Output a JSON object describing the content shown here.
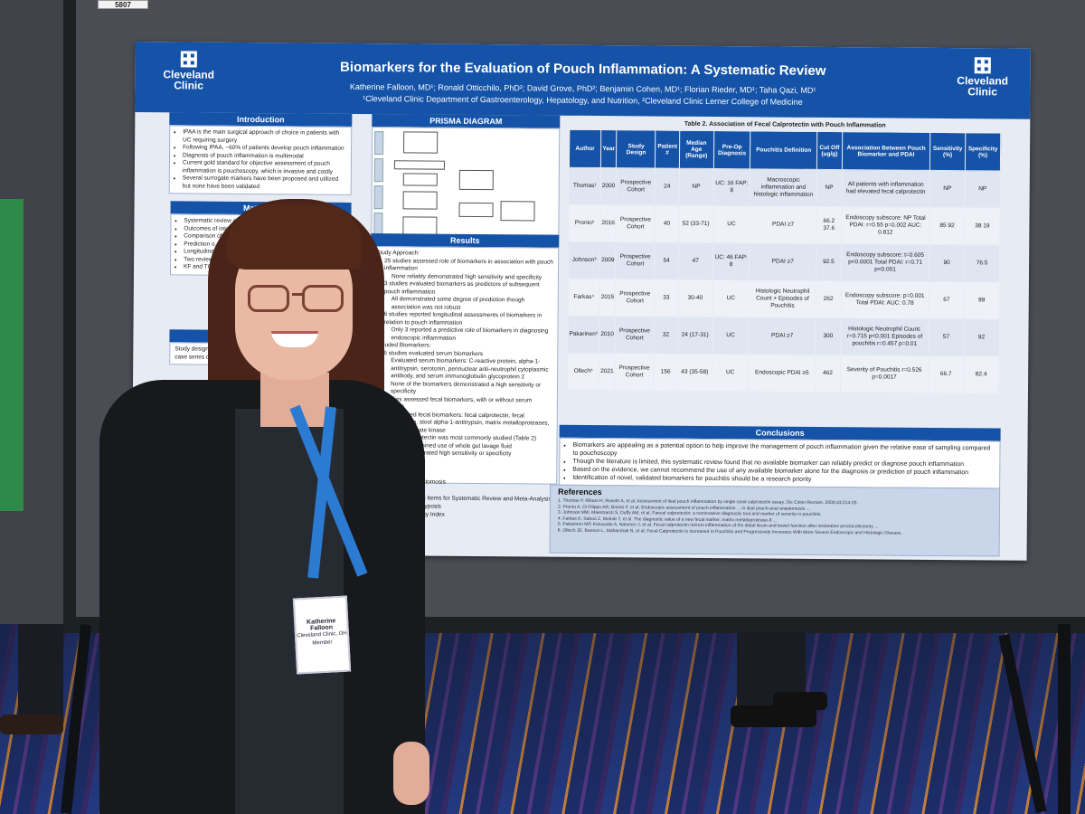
{
  "booth": {
    "number_tag": "5807"
  },
  "poster": {
    "title": "Biomarkers for the Evaluation of Pouch Inflammation: A Systematic Review",
    "authors": "Katherine Falloon, MD¹; Ronald Otticchilo, PhD²; David Grove, PhD²; Benjamin Cohen, MD¹; Florian Rieder, MD¹; Taha Qazi, MD¹",
    "affiliations": "¹Cleveland Clinic Department of Gastroenterology, Hepatology, and Nutrition, ²Cleveland Clinic Lerner College of Medicine",
    "logo_left": [
      "Cleveland",
      "Clinic"
    ],
    "logo_right": [
      "Cleveland",
      "Clinic"
    ],
    "intro": {
      "heading": "Introduction",
      "bullets": [
        "IPAA is the main surgical approach of choice in patients with UC requiring surgery",
        "Following IPAA, ~60% of patients develop pouch inflammation",
        "Diagnosis of pouch inflammation is multimodal",
        "Current gold standard for objective assessment of pouch inflammation is pouchoscopy, which is invasive and costly",
        "Several surrogate markers have been proposed and utilized but none have been validated"
      ]
    },
    "methods": {
      "heading": "Materials",
      "lines": [
        "Systematic review con... guidelines",
        "Outcomes of interest",
        "Comparison of ... assessed via ... or sensitivity ...",
        "Prediction o...",
        "Longitudina...",
        "Two reviewers (K... abstracts and ide... on eligibility crite...",
        "KF and TQ indepe... risk of bias using ..."
      ]
    },
    "inclusion": {
      "heading": "INCLUSION",
      "text": "Study design-rando... randomized observ... studies, case co... case series cou... patients ... Pati..."
    },
    "prisma": {
      "heading": "PRISMA DIAGRAM",
      "stages": [
        "Identification",
        "Screening",
        "Eligibility",
        "Included"
      ]
    },
    "results": {
      "heading": "Results",
      "lines": [
        "Study Approach:",
        "25 studies assessed role of biomarkers in association with pouch inflammation",
        "None reliably demonstrated high sensitivity and specificity",
        "3 studies evaluated biomarkers as predictors of subsequent pouch inflammation",
        "All demonstrated some degree of prediction though association was not robust",
        "6 studies reported longitudinal assessments of biomarkers in relation to pouch inflammation",
        "Only 3 reported a predictive role of biomarkers in diagnosing endoscopic inflammation",
        "Included Biomarkers:",
        "6 studies evaluated serum biomarkers",
        "Evaluated serum biomarkers: C-reactive protein, alpha-1-antitrypsin, serotonin, perinuclear anti-neutrophil cytoplasmic antibody, and serum immunoglobulin glycoprotein 2",
        "None of the biomarkers demonstrated a high sensitivity or specificity",
        "23 studies assessed fecal biomarkers, with or without serum biomarkers",
        "Evaluated fecal biomarkers: fecal calprotectin, fecal lactoferrin, stool alpha-1-antitrypsin, matrix metalloproteases, fecal pyruvate kinase",
        "Fecal calprotectin was most commonly studied (Table 2)",
        "studies examined use of whole gut lavage fluid",
        "one demonstrated high sensitivity or specificity"
      ]
    },
    "abbrev": [
      "...ch anal anastomosis",
      "...itis",
      "...ed Reporting Items for Systematic Review and Meta-Analysis",
      "...omatous Polyposis",
      "...isease Activity Index"
    ],
    "table": {
      "caption": "Table 2. Association of Fecal Calprotectin with Pouch Inflammation",
      "headers": [
        "Author",
        "Year",
        "Study Design",
        "Patient #",
        "Median Age (Range)",
        "Pre-Op Diagnosis",
        "Pouchitis Definition",
        "Cut Off (ug/g)",
        "Association Between Pouch Biomarker and PDAI",
        "Sensitivity (%)",
        "Specificity (%)"
      ],
      "rows": [
        [
          "Thomas¹",
          "2000",
          "Prospective Cohort",
          "24",
          "NP",
          "UC: 16 FAP: 8",
          "Macroscopic inflammation and histologic inflammation",
          "NP",
          "All patients with inflammation had elevated fecal calprotectin",
          "NP",
          "NP"
        ],
        [
          "Pronio²",
          "2016",
          "Prospective Cohort",
          "40",
          "52 (33-71)",
          "UC",
          "PDAI ≥7",
          "66.2 37.6",
          "Endoscopy subscore: NP Total PDAI: r=0.55 p=0.002 AUC: 0.812",
          "85 92",
          "38 19"
        ],
        [
          "Johnson³",
          "2009",
          "Prospective Cohort",
          "54",
          "47",
          "UC: 46 FAP: 8",
          "PDAI ≥7",
          "92.5",
          "Endoscopy subscore: t=0.605 p<0.0001 Total PDAI: r=0.71 p<0.001",
          "90",
          "76.5"
        ],
        [
          "Farkas⁴",
          "2015",
          "Prospective Cohort",
          "33",
          "30-40",
          "UC",
          "Histologic Neutrophil Count + Episodes of Pouchitis",
          "262",
          "Endoscopy subscore: p=0.001 Total PDAI: AUC: 0.78",
          "67",
          "89"
        ],
        [
          "Pakarinen⁵",
          "2010",
          "Prospective Cohort",
          "32",
          "24 (17-31)",
          "UC",
          "PDAI ≥7",
          "300",
          "Histologic Neutrophil Count: r=0.715 p<0.001 Episodes of pouchitis r=0.457 p=0.01",
          "57",
          "92"
        ],
        [
          "Ollech⁶",
          "2021",
          "Prospective Cohort",
          "156",
          "43 (35-58)",
          "UC",
          "Endoscopic PDAI ≥5",
          "462",
          "Severity of Pouchitis r=0.526 p=0.0017",
          "66.7",
          "82.4"
        ]
      ]
    },
    "conclusions": {
      "heading": "Conclusions",
      "bullets": [
        "Biomarkers are appealing as a potential option to help improve the management of pouch inflammation given the relative ease of sampling compared to pouchoscopy",
        "Though the literature is limited, this systematic review found that no available biomarker can reliably predict or diagnose pouch inflammation",
        "Based on the evidence, we cannot recommend the use of any available biomarker alone for the diagnosis or prediction of pouch inflammation",
        "Identification of novel, validated biomarkers for pouchitis should be a research priority"
      ]
    },
    "references": {
      "heading": "References",
      "lines": [
        "1. Thomas P, Rihani H, Roseth A, et al. Assessment of ileal pouch inflammation by single-stool calprotectin assay. Dis Colon Rectum. 2000;43:214-20.",
        "2. Pronio A, Di Filippo AR, Borrini F, et al. Endoscopic assessment of pouch inflammation ... in ileal pouch-anal anastomosis ...",
        "3. Johnson MW, Maestranzi S, Duffy AM, et al. Faecal calprotectin: a noninvasive diagnostic tool and marker of severity in pouchitis.",
        "4. Farkas K, Saboó Z, Molnár T, et al. The diagnostic value of a new fecal marker, matrix metalloprotease-9 ...",
        "5. Pakarinen MP, Koivusalo A, Natunen J, et al. Fecal calprotectin mirrors inflammation of the distal ileum and bowel function after restorative proctocolectomy ...",
        "6. Ollech JE, Bannon L, Maharshak N, et al. Fecal Calprotectin Is Increased in Pouchitis and Progressively Increases With More Severe Endoscopic and Histologic Disease."
      ]
    }
  },
  "badge": {
    "name": "Katherine Falloon",
    "line2": "Cleveland Clinic, OH",
    "line3": "Member"
  },
  "colors": {
    "poster_blue": "#1553a8",
    "lanyard_blue": "#2c7bd2",
    "board_gray": "#4a4d54",
    "carpet_navy": "#1d2f6e"
  }
}
